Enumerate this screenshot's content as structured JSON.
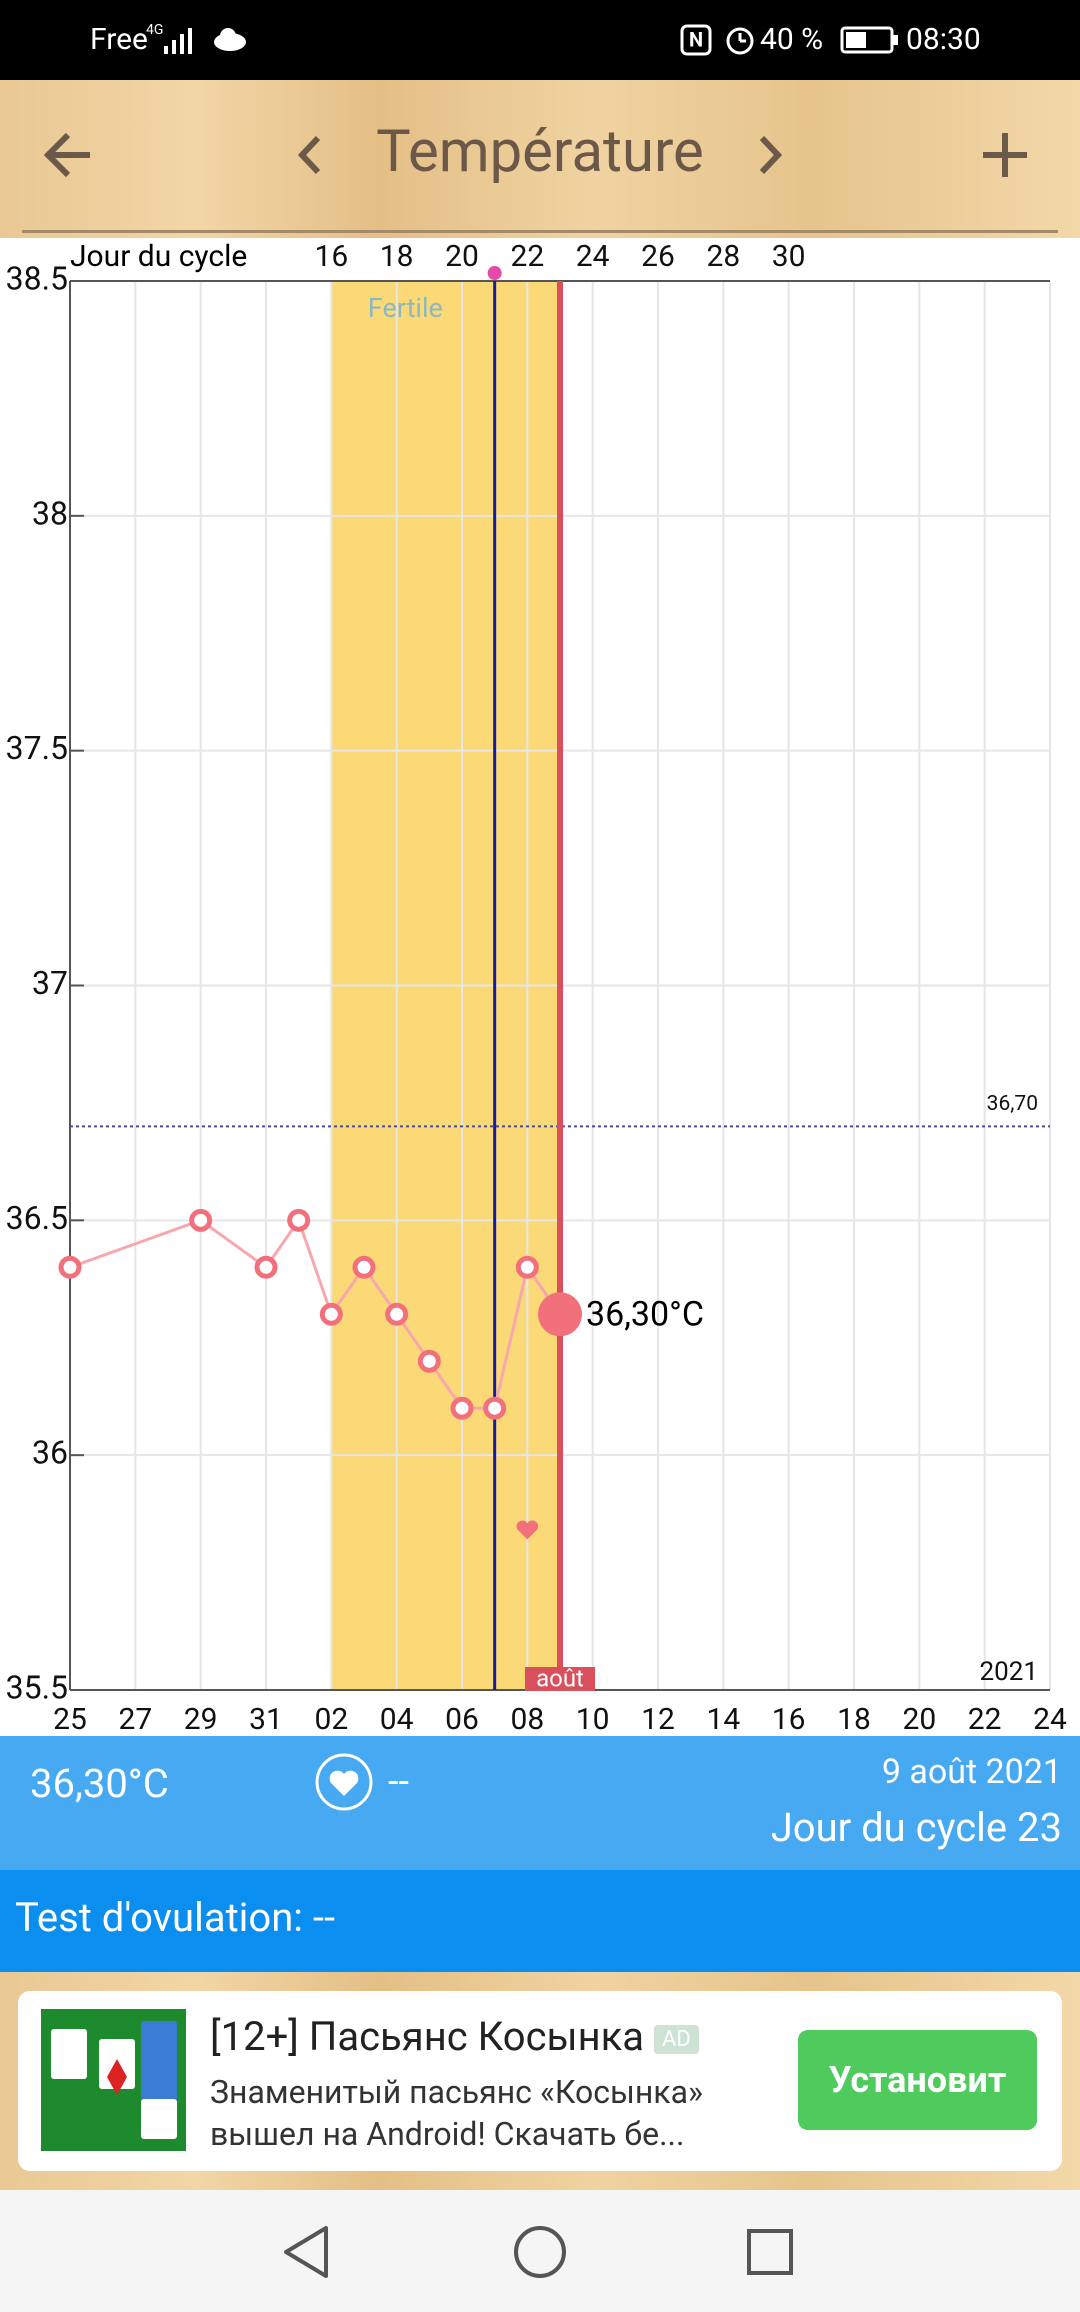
{
  "status_bar": {
    "carrier": "Free",
    "network": "4G",
    "battery": "40 %",
    "time": "08:30"
  },
  "header": {
    "title": "Température"
  },
  "chart_data": {
    "type": "line",
    "x2_label": "Jour du cycle",
    "series": [
      {
        "color": "#f2707c",
        "x": [
          0,
          4,
          6,
          7,
          8,
          9,
          10,
          11,
          12,
          13,
          14,
          15
        ],
        "values": [
          36.4,
          36.5,
          36.4,
          36.5,
          36.3,
          36.4,
          36.3,
          36.2,
          36.1,
          36.1,
          36.4,
          36.3
        ]
      }
    ],
    "current_label": "36,30°C",
    "xlim": [
      0,
      30
    ],
    "xticks": [
      {
        "value": 0,
        "label": "25"
      },
      {
        "value": 2,
        "label": "27"
      },
      {
        "value": 4,
        "label": "29"
      },
      {
        "value": 6,
        "label": "31"
      },
      {
        "value": 8,
        "label": "02"
      },
      {
        "value": 10,
        "label": "04"
      },
      {
        "value": 12,
        "label": "06"
      },
      {
        "value": 14,
        "label": "08"
      },
      {
        "value": 16,
        "label": "10"
      },
      {
        "value": 18,
        "label": "12"
      },
      {
        "value": 20,
        "label": "14"
      },
      {
        "value": 22,
        "label": "16"
      },
      {
        "value": 24,
        "label": "18"
      },
      {
        "value": 26,
        "label": "20"
      },
      {
        "value": 28,
        "label": "22"
      },
      {
        "value": 30,
        "label": "24"
      }
    ],
    "x2ticks": [
      {
        "value": 8,
        "label": "16"
      },
      {
        "value": 10,
        "label": "18"
      },
      {
        "value": 12,
        "label": "20"
      },
      {
        "value": 14,
        "label": "22"
      },
      {
        "value": 16,
        "label": "24"
      },
      {
        "value": 18,
        "label": "26"
      },
      {
        "value": 20,
        "label": "28"
      },
      {
        "value": 22,
        "label": "30"
      }
    ],
    "ylim": [
      35.5,
      38.5
    ],
    "yticks": [
      35.5,
      36,
      36.5,
      37,
      37.5,
      38,
      38.5
    ],
    "grid": true,
    "fertile_window": {
      "label": "Fertile",
      "start": 8,
      "end": 15,
      "color": "#fbd977"
    },
    "ovulation_x": 13,
    "today_x": 15,
    "today_label": "août",
    "year_label": "2021",
    "cover_line": {
      "value": 36.7,
      "label": "36,70"
    },
    "heart_marker": {
      "x": 14,
      "value": 35.84
    }
  },
  "summary": {
    "temperature": "36,30°C",
    "intercourse": "--",
    "date": "9 août 2021",
    "cycle_day": "Jour du cycle 23"
  },
  "ovulation_test": {
    "label": "Test d'ovulation: --"
  },
  "ad": {
    "title": "[12+] Пасьянс Косынка",
    "badge": "AD",
    "description_1": "Знаменитый пасьянс «Косынка»",
    "description_2": "вышел на Android! Скачать бе...",
    "button": "Установит"
  }
}
